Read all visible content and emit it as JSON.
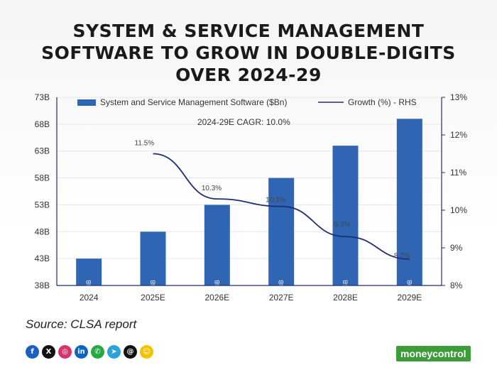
{
  "title_lines": [
    "SYSTEM & SERVICE MANAGEMENT",
    "SOFTWARE TO GROW IN DOUBLE-DIGITS",
    "OVER 2024-29"
  ],
  "source": "Source: CLSA report",
  "brand": "moneycontrol",
  "socials": [
    {
      "icon": "facebook-icon",
      "glyph": "f",
      "color": "#1b5fbf"
    },
    {
      "icon": "x-icon",
      "glyph": "X",
      "color": "#111111"
    },
    {
      "icon": "instagram-icon",
      "glyph": "◎",
      "color": "#d6336c"
    },
    {
      "icon": "linkedin-icon",
      "glyph": "in",
      "color": "#0a66c2"
    },
    {
      "icon": "whatsapp-icon",
      "glyph": "✆",
      "color": "#25a944"
    },
    {
      "icon": "telegram-icon",
      "glyph": "➤",
      "color": "#2aa3d8"
    },
    {
      "icon": "threads-icon",
      "glyph": "@",
      "color": "#111111"
    },
    {
      "icon": "snapchat-icon",
      "glyph": "☺",
      "color": "#f2c400"
    }
  ],
  "chart_data": {
    "type": "bar",
    "categories": [
      "2024",
      "2025E",
      "2026E",
      "2027E",
      "2028E",
      "2029E"
    ],
    "series": [
      {
        "name": "System and Service Management Software ($Bn)",
        "type": "bar",
        "axis": "left",
        "color": "#2f65b3",
        "values": [
          43,
          48,
          53,
          58,
          64,
          69
        ],
        "labels": [
          "43B",
          "48B",
          "53B",
          "58B",
          "64B",
          "69B"
        ]
      },
      {
        "name": "Growth (%) - RHS",
        "type": "line",
        "axis": "right",
        "color": "#1f2e6e",
        "values": [
          null,
          11.5,
          10.3,
          10.1,
          9.3,
          8.7
        ],
        "labels": [
          "",
          "11.5%",
          "10.3%",
          "10.1%",
          "9.3%",
          "8.7%"
        ]
      }
    ],
    "annotation": "2024-29E CAGR: 10.0%",
    "yleft": {
      "min": 38,
      "max": 73,
      "ticks": [
        "38B",
        "43B",
        "48B",
        "53B",
        "58B",
        "63B",
        "68B",
        "73B"
      ]
    },
    "yright": {
      "min": 8,
      "max": 13,
      "ticks": [
        "8%",
        "9%",
        "10%",
        "11%",
        "12%",
        "13%"
      ]
    },
    "legend_position": "top"
  }
}
